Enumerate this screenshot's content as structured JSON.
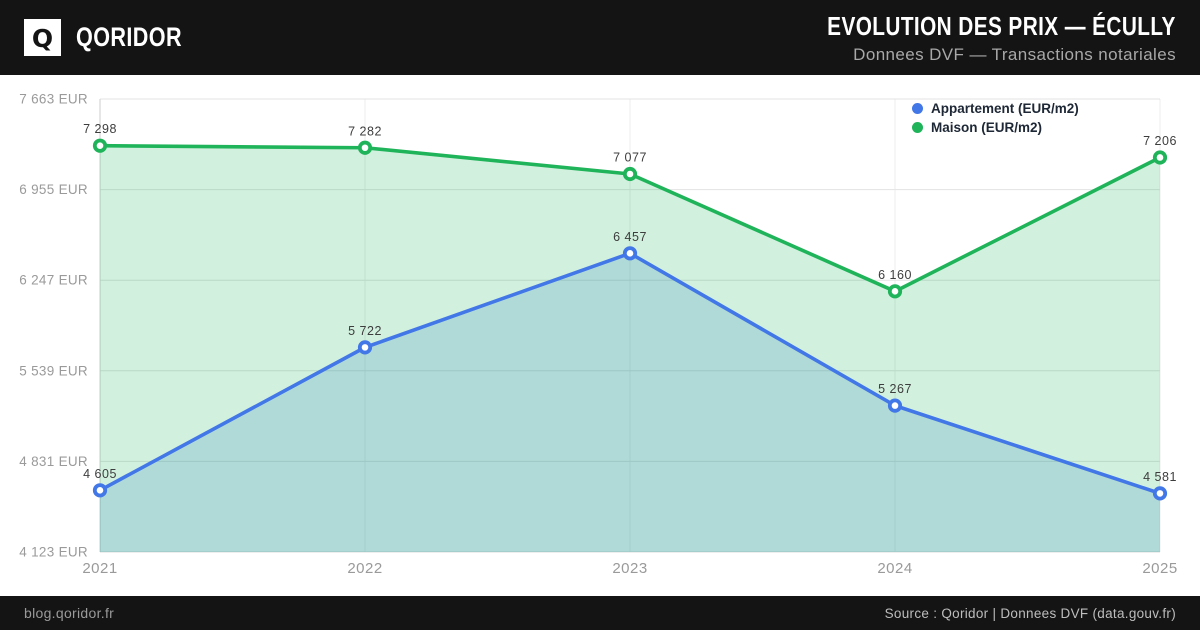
{
  "brand": {
    "name": "QORIDOR",
    "logo_letter": "Q"
  },
  "header": {
    "title": "EVOLUTION DES PRIX — ÉCULLY",
    "subtitle": "Donnees DVF — Transactions notariales"
  },
  "footer": {
    "left": "blog.qoridor.fr",
    "right": "Source : Qoridor | Donnees DVF (data.gouv.fr)"
  },
  "colors": {
    "header_bg": "#141414",
    "footer_bg": "#141414",
    "appartement": "#4277e8",
    "maison": "#20b45a",
    "axis_label": "#9a9a9a",
    "data_label": "#3d3d3d",
    "legend_text": "#1d2735"
  },
  "chart_data": {
    "type": "line",
    "title": "EVOLUTION DES PRIX — ÉCULLY",
    "subtitle": "Donnees DVF — Transactions notariales",
    "categories": [
      "2021",
      "2022",
      "2023",
      "2024",
      "2025"
    ],
    "series": [
      {
        "name": "Appartement (EUR/m2)",
        "color": "#4277e8",
        "fill": "rgba(40,130,190,0.20)",
        "values": [
          4605,
          5722,
          6457,
          5267,
          4581
        ],
        "labels": [
          "4 605",
          "5 722",
          "6 457",
          "5 267",
          "4 581"
        ]
      },
      {
        "name": "Maison (EUR/m2)",
        "color": "#20b45a",
        "fill": "rgba(32,180,90,0.20)",
        "values": [
          7298,
          7282,
          7077,
          6160,
          7206
        ],
        "labels": [
          "7 298",
          "7 282",
          "7 077",
          "6 160",
          "7 206"
        ]
      }
    ],
    "ylim": [
      4123,
      7663
    ],
    "yticks": [
      {
        "value": 7663,
        "label": "7 663 EUR"
      },
      {
        "value": 6955,
        "label": "6 955 EUR"
      },
      {
        "value": 6247,
        "label": "6 247 EUR"
      },
      {
        "value": 5539,
        "label": "5 539 EUR"
      },
      {
        "value": 4831,
        "label": "4 831 EUR"
      },
      {
        "value": 4123,
        "label": "4 123 EUR"
      }
    ],
    "grid": true,
    "legend_position": "top-right"
  }
}
